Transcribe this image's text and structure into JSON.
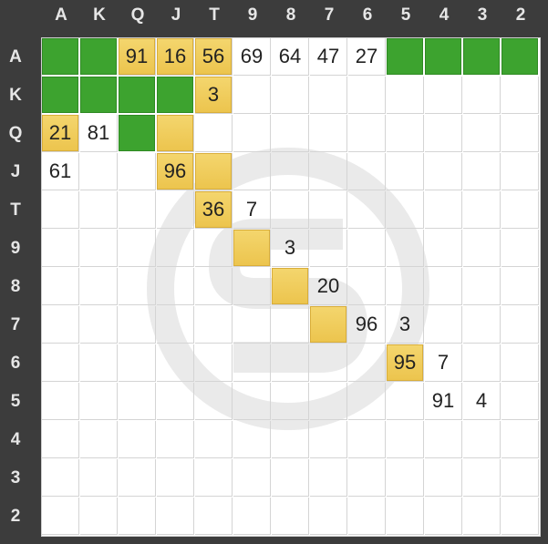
{
  "ranks": [
    "A",
    "K",
    "Q",
    "J",
    "T",
    "9",
    "8",
    "7",
    "6",
    "5",
    "4",
    "3",
    "2"
  ],
  "colors": {
    "green": "#3da32f",
    "yellow": "#f0cc5a",
    "empty": "#ffffff"
  },
  "cells": [
    [
      "green",
      "green",
      "yellow:91",
      "yellow:16",
      "yellow:56",
      "69",
      "64",
      "47",
      "27",
      "green",
      "green",
      "green",
      "green"
    ],
    [
      "green",
      "green",
      "green",
      "green",
      "yellow:3",
      "",
      "",
      "",
      "",
      "",
      "",
      "",
      ""
    ],
    [
      "yellow:21",
      "81",
      "green",
      "yellow",
      "",
      "",
      "",
      "",
      "",
      "",
      "",
      "",
      ""
    ],
    [
      "61",
      "",
      "",
      "yellow:96",
      "yellow",
      "",
      "",
      "",
      "",
      "",
      "",
      "",
      ""
    ],
    [
      "",
      "",
      "",
      "",
      "yellow:36",
      "7",
      "",
      "",
      "",
      "",
      "",
      "",
      ""
    ],
    [
      "",
      "",
      "",
      "",
      "",
      "yellow",
      "3",
      "",
      "",
      "",
      "",
      "",
      ""
    ],
    [
      "",
      "",
      "",
      "",
      "",
      "",
      "yellow",
      "20",
      "",
      "",
      "",
      "",
      ""
    ],
    [
      "",
      "",
      "",
      "",
      "",
      "",
      "",
      "yellow",
      "96",
      "3",
      "",
      "",
      ""
    ],
    [
      "",
      "",
      "",
      "",
      "",
      "",
      "",
      "",
      "",
      "yellow:95",
      "7",
      "",
      ""
    ],
    [
      "",
      "",
      "",
      "",
      "",
      "",
      "",
      "",
      "",
      "",
      "91",
      "4",
      ""
    ],
    [
      "",
      "",
      "",
      "",
      "",
      "",
      "",
      "",
      "",
      "",
      "",
      "",
      ""
    ],
    [
      "",
      "",
      "",
      "",
      "",
      "",
      "",
      "",
      "",
      "",
      "",
      "",
      ""
    ],
    [
      "",
      "",
      "",
      "",
      "",
      "",
      "",
      "",
      "",
      "",
      "",
      "",
      ""
    ]
  ]
}
